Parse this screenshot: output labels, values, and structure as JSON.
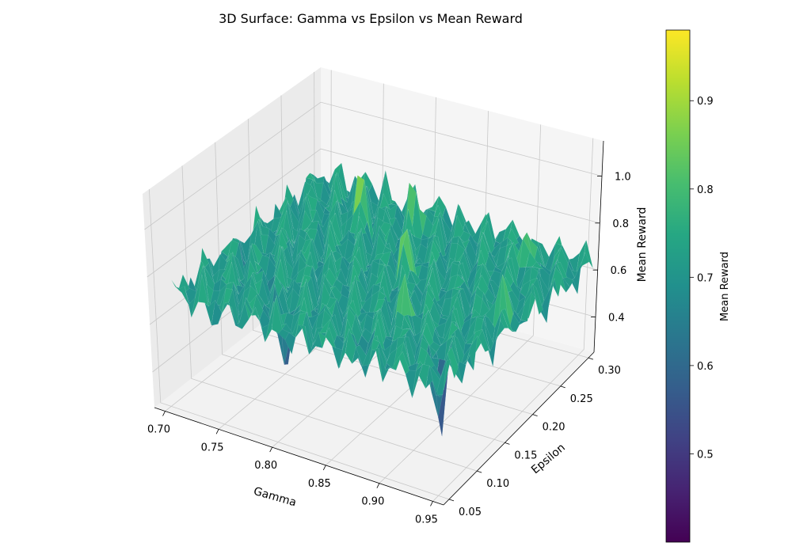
{
  "chart_data": {
    "type": "surface3d",
    "title": "3D Surface: Gamma vs Epsilon vs Mean Reward",
    "xlabel": "Gamma",
    "ylabel": "Epsilon",
    "zlabel": "Mean Reward",
    "xlim": [
      0.69,
      0.96
    ],
    "ylim": [
      0.04,
      0.31
    ],
    "zlim": [
      0.25,
      1.15
    ],
    "xticks": [
      0.7,
      0.75,
      0.8,
      0.85,
      0.9,
      0.95
    ],
    "xtick_labels": [
      "0.70",
      "0.75",
      "0.80",
      "0.85",
      "0.90",
      "0.95"
    ],
    "yticks": [
      0.05,
      0.1,
      0.15,
      0.2,
      0.25,
      0.3
    ],
    "ytick_labels": [
      "0.05",
      "0.10",
      "0.15",
      "0.20",
      "0.25",
      "0.30"
    ],
    "zticks": [
      0.4,
      0.6,
      0.8,
      1.0
    ],
    "ztick_labels": [
      "0.4",
      "0.6",
      "0.8",
      "1.0"
    ],
    "colormap": "viridis",
    "colorbar": {
      "label": "Mean Reward",
      "range": [
        0.4,
        0.98
      ],
      "ticks": [
        0.5,
        0.6,
        0.7,
        0.8,
        0.9
      ],
      "tick_labels": [
        "0.5",
        "0.6",
        "0.7",
        "0.8",
        "0.9"
      ]
    },
    "baseline_reward": 0.72,
    "grid": true,
    "features": [
      {
        "gamma": 0.765,
        "epsilon": 0.245,
        "reward": 0.98,
        "kind": "peak"
      },
      {
        "gamma": 0.835,
        "epsilon": 0.195,
        "reward": 0.96,
        "kind": "peak"
      },
      {
        "gamma": 0.905,
        "epsilon": 0.265,
        "reward": 0.93,
        "kind": "peak"
      },
      {
        "gamma": 0.805,
        "epsilon": 0.265,
        "reward": 0.9,
        "kind": "peak"
      },
      {
        "gamma": 0.875,
        "epsilon": 0.125,
        "reward": 0.88,
        "kind": "peak"
      },
      {
        "gamma": 0.935,
        "epsilon": 0.175,
        "reward": 0.87,
        "kind": "peak"
      },
      {
        "gamma": 0.785,
        "epsilon": 0.085,
        "reward": 0.4,
        "kind": "dip"
      },
      {
        "gamma": 0.93,
        "epsilon": 0.085,
        "reward": 0.42,
        "kind": "dip"
      },
      {
        "gamma": 0.715,
        "epsilon": 0.155,
        "reward": 0.55,
        "kind": "dip"
      },
      {
        "gamma": 0.865,
        "epsilon": 0.075,
        "reward": 0.58,
        "kind": "dip"
      },
      {
        "gamma": 0.745,
        "epsilon": 0.125,
        "reward": 0.62,
        "kind": "dip"
      }
    ]
  }
}
